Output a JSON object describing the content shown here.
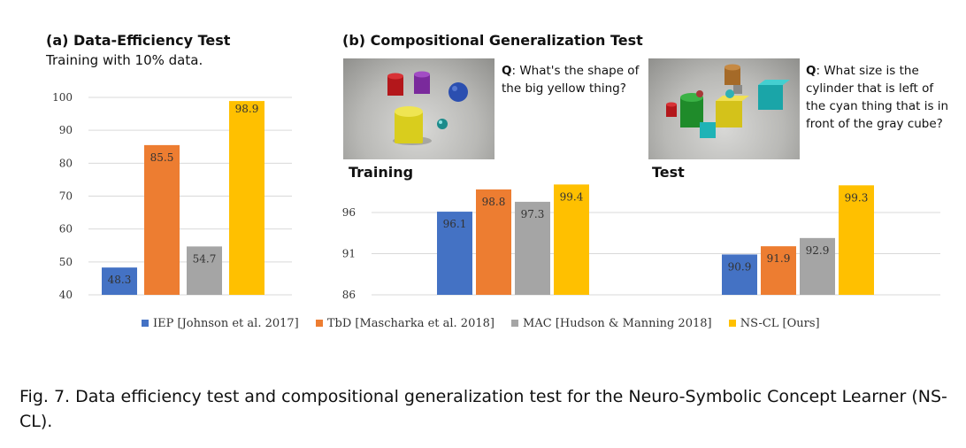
{
  "panel_a": {
    "title": "(a) Data-Efficiency Test",
    "subtitle": "Training with 10% data."
  },
  "panel_b": {
    "title": "(b) Compositional Generalization Test",
    "training_label": "Training",
    "test_label": "Test",
    "training_q_label": "Q",
    "training_q_text": ": What's the shape of the big yellow thing?",
    "test_q_label": "Q",
    "test_q_text": ": What size is the cylinder that is left of the cyan thing that is in front of the gray cube?"
  },
  "legend": [
    {
      "label": "IEP [Johnson et al. 2017]",
      "color": "#4472C4"
    },
    {
      "label": "TbD [Mascharka et al. 2018]",
      "color": "#ED7D31"
    },
    {
      "label": "MAC [Hudson & Manning 2018]",
      "color": "#A5A5A5"
    },
    {
      "label": "NS-CL [Ours]",
      "color": "#FFC000"
    }
  ],
  "caption": "Fig. 7.  Data efficiency test and compositional generalization test for the Neuro-Symbolic Concept Learner (NS-CL).",
  "chart_data": [
    {
      "type": "bar",
      "title": "(a) Data-Efficiency Test",
      "subtitle": "Training with 10% data.",
      "categories": [
        "IEP",
        "TbD",
        "MAC",
        "NS-CL"
      ],
      "values": [
        48.3,
        85.5,
        54.7,
        98.9
      ],
      "value_labels": [
        "48.3",
        "85.5",
        "54.7",
        "98.9"
      ],
      "ylim": [
        40,
        100
      ],
      "yticks": [
        "40",
        "50",
        "60",
        "70",
        "80",
        "90",
        "100"
      ],
      "colors": [
        "#4472C4",
        "#ED7D31",
        "#A5A5A5",
        "#FFC000"
      ],
      "grid": true
    },
    {
      "type": "bar",
      "title": "(b) Compositional Generalization Test",
      "categories": [
        "Training",
        "Test"
      ],
      "series": [
        {
          "name": "IEP [Johnson et al. 2017]",
          "values": [
            96.1,
            90.9
          ],
          "labels": [
            "96.1",
            "90.9"
          ],
          "color": "#4472C4"
        },
        {
          "name": "TbD [Mascharka et al. 2018]",
          "values": [
            98.8,
            91.9
          ],
          "labels": [
            "98.8",
            "91.9"
          ],
          "color": "#ED7D31"
        },
        {
          "name": "MAC [Hudson & Manning 2018]",
          "values": [
            97.3,
            92.9
          ],
          "labels": [
            "97.3",
            "92.9"
          ],
          "color": "#A5A5A5"
        },
        {
          "name": "NS-CL [Ours]",
          "values": [
            99.4,
            99.3
          ],
          "labels": [
            "99.4",
            "99.3"
          ],
          "color": "#FFC000"
        }
      ],
      "ylim": [
        86,
        101
      ],
      "yticks": [
        "86",
        "91",
        "96"
      ],
      "grid": true
    }
  ]
}
